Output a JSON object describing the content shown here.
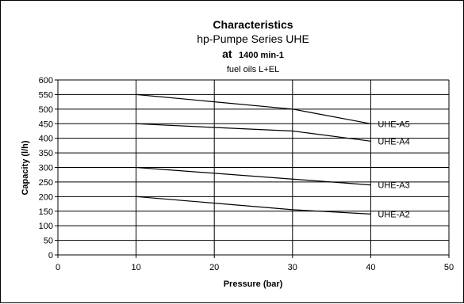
{
  "chart_data": {
    "type": "line",
    "title": "Characteristics",
    "subtitle_lines": [
      "hp-Pumpe Series UHE",
      "1400 min-1",
      "fuel oils L+EL"
    ],
    "speed_prefix": "at",
    "speed_value": "1400 min-1",
    "subtitle_main": "hp-Pumpe Series UHE",
    "subtitle_fuel": "fuel oils L+EL",
    "xlabel": "Pressure (bar)",
    "ylabel": "Capacity (l/h)",
    "xlim": [
      0,
      50
    ],
    "ylim": [
      0,
      600
    ],
    "x_ticks": [
      0,
      10,
      20,
      30,
      40,
      50
    ],
    "y_ticks": [
      0,
      50,
      100,
      150,
      200,
      250,
      300,
      350,
      400,
      450,
      500,
      550,
      600
    ],
    "grid": {
      "horizontal": true,
      "vertical": true
    },
    "series": [
      {
        "name": "UHE-A5",
        "x": [
          10,
          20,
          30,
          32,
          40
        ],
        "y": [
          550,
          525,
          500,
          490,
          450
        ]
      },
      {
        "name": "UHE-A4",
        "x": [
          10,
          20,
          30,
          32,
          40
        ],
        "y": [
          450,
          437,
          425,
          418,
          390
        ]
      },
      {
        "name": "UHE-A3",
        "x": [
          10,
          40
        ],
        "y": [
          300,
          240
        ]
      },
      {
        "name": "UHE-A2",
        "x": [
          10,
          30,
          40
        ],
        "y": [
          200,
          155,
          140
        ]
      }
    ]
  }
}
